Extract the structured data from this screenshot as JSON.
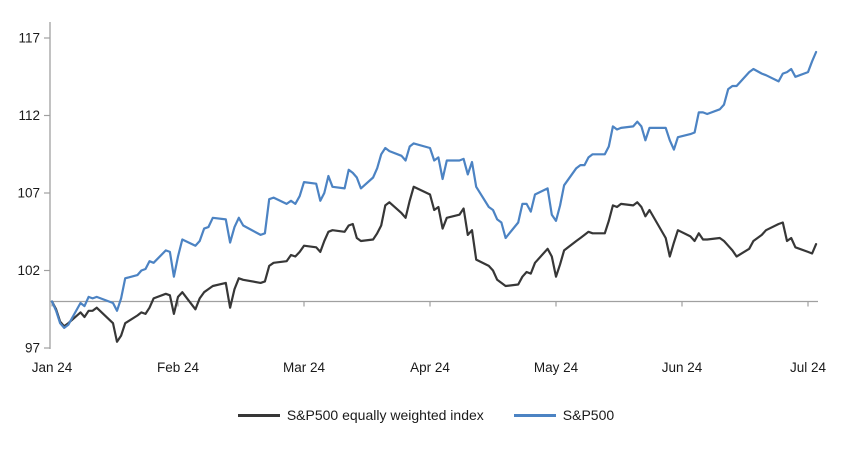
{
  "chart_data": {
    "type": "line",
    "title": "",
    "x_tick_labels": [
      "Jan 24",
      "Feb 24",
      "Mar 24",
      "Apr 24",
      "May 24",
      "Jun 24",
      "Jul 24"
    ],
    "y_tick_labels": [
      117,
      112,
      107,
      102,
      97
    ],
    "ylim": [
      97,
      118
    ],
    "baseline_value": 100,
    "grid": false,
    "legend_position": "bottom-center",
    "colors": {
      "axis": "#a0a0a0",
      "baseline": "#a0a0a0",
      "tick_text": "#1a1a1a",
      "equal_weight_line": "#373737",
      "sp500_line": "#4c83c3"
    },
    "dates": [
      "01-01",
      "01-02",
      "01-03",
      "01-04",
      "01-05",
      "01-08",
      "01-09",
      "01-10",
      "01-11",
      "01-12",
      "01-16",
      "01-17",
      "01-18",
      "01-19",
      "01-22",
      "01-23",
      "01-24",
      "01-25",
      "01-26",
      "01-29",
      "01-30",
      "01-31",
      "02-01",
      "02-02",
      "02-05",
      "02-06",
      "02-07",
      "02-08",
      "02-09",
      "02-12",
      "02-13",
      "02-14",
      "02-15",
      "02-16",
      "02-20",
      "02-21",
      "02-22",
      "02-23",
      "02-26",
      "02-27",
      "02-28",
      "02-29",
      "03-01",
      "03-04",
      "03-05",
      "03-06",
      "03-07",
      "03-08",
      "03-11",
      "03-12",
      "03-13",
      "03-14",
      "03-15",
      "03-18",
      "03-19",
      "03-20",
      "03-21",
      "03-22",
      "03-25",
      "03-26",
      "03-27",
      "03-28",
      "04-01",
      "04-02",
      "04-03",
      "04-04",
      "04-05",
      "04-08",
      "04-09",
      "04-10",
      "04-11",
      "04-12",
      "04-15",
      "04-16",
      "04-17",
      "04-18",
      "04-19",
      "04-22",
      "04-23",
      "04-24",
      "04-25",
      "04-26",
      "04-29",
      "04-30",
      "05-01",
      "05-02",
      "05-03",
      "05-06",
      "05-07",
      "05-08",
      "05-09",
      "05-10",
      "05-13",
      "05-14",
      "05-15",
      "05-16",
      "05-17",
      "05-20",
      "05-21",
      "05-22",
      "05-23",
      "05-24",
      "05-28",
      "05-29",
      "05-30",
      "05-31",
      "06-03",
      "06-04",
      "06-05",
      "06-06",
      "06-07",
      "06-10",
      "06-11",
      "06-12",
      "06-13",
      "06-14",
      "06-17",
      "06-18",
      "06-20",
      "06-21",
      "06-24",
      "06-25",
      "06-26",
      "06-27",
      "06-28",
      "07-01",
      "07-02",
      "07-03"
    ],
    "series": [
      {
        "name": "S&P500 equally weighted index",
        "color": "#373737",
        "values": [
          100.0,
          99.5,
          98.7,
          98.4,
          98.6,
          99.3,
          99.0,
          99.4,
          99.4,
          99.6,
          98.6,
          97.4,
          97.8,
          98.6,
          99.1,
          99.3,
          99.2,
          99.6,
          100.2,
          100.5,
          100.4,
          99.2,
          100.3,
          100.6,
          99.5,
          100.2,
          100.6,
          100.8,
          101.0,
          101.2,
          99.6,
          100.8,
          101.5,
          101.4,
          101.2,
          101.3,
          102.3,
          102.5,
          102.6,
          103.0,
          102.9,
          103.2,
          103.6,
          103.5,
          103.2,
          103.9,
          104.5,
          104.6,
          104.5,
          104.9,
          105.0,
          104.1,
          103.9,
          104.0,
          104.4,
          104.9,
          106.2,
          106.4,
          105.7,
          105.4,
          106.5,
          107.4,
          106.9,
          105.9,
          106.1,
          104.7,
          105.4,
          105.6,
          106.0,
          104.3,
          104.6,
          102.7,
          102.3,
          102.0,
          101.4,
          101.2,
          101.0,
          101.1,
          101.6,
          101.9,
          101.8,
          102.5,
          103.4,
          102.9,
          101.6,
          102.4,
          103.3,
          103.9,
          104.1,
          104.3,
          104.5,
          104.4,
          104.4,
          105.2,
          106.2,
          106.1,
          106.3,
          106.2,
          106.4,
          106.1,
          105.5,
          105.9,
          104.1,
          102.9,
          103.8,
          104.6,
          104.2,
          103.9,
          104.4,
          104.0,
          104.0,
          104.1,
          103.9,
          103.6,
          103.3,
          102.9,
          103.4,
          103.9,
          104.3,
          104.6,
          105.0,
          105.1,
          103.9,
          104.1,
          103.5,
          103.2,
          103.1,
          103.7
        ]
      },
      {
        "name": "S&P500",
        "color": "#4c83c3",
        "values": [
          100.0,
          99.4,
          98.6,
          98.3,
          98.5,
          99.9,
          99.7,
          100.3,
          100.2,
          100.3,
          99.9,
          99.4,
          100.2,
          101.5,
          101.7,
          102.0,
          102.1,
          102.6,
          102.5,
          103.3,
          103.2,
          101.6,
          102.9,
          104.0,
          103.6,
          103.9,
          104.7,
          104.8,
          105.4,
          105.3,
          103.8,
          104.8,
          105.4,
          104.9,
          104.3,
          104.4,
          106.6,
          106.7,
          106.3,
          106.5,
          106.3,
          106.8,
          107.7,
          107.6,
          106.5,
          107.0,
          108.1,
          107.4,
          107.3,
          108.5,
          108.3,
          108.0,
          107.3,
          108.0,
          108.6,
          109.5,
          109.9,
          109.7,
          109.4,
          109.1,
          110.0,
          110.2,
          109.9,
          109.1,
          109.3,
          107.9,
          109.1,
          109.1,
          109.2,
          108.2,
          109.0,
          107.4,
          106.1,
          105.9,
          105.3,
          105.1,
          104.1,
          105.1,
          106.3,
          106.3,
          105.8,
          106.9,
          107.3,
          105.6,
          105.2,
          106.2,
          107.5,
          108.6,
          108.8,
          108.8,
          109.3,
          109.5,
          109.5,
          110.0,
          111.3,
          111.1,
          111.2,
          111.3,
          111.6,
          111.3,
          110.4,
          111.2,
          111.2,
          110.4,
          109.8,
          110.6,
          110.8,
          110.9,
          112.2,
          112.2,
          112.1,
          112.4,
          112.7,
          113.7,
          113.9,
          113.9,
          114.8,
          115.0,
          114.7,
          114.6,
          114.2,
          114.7,
          114.8,
          115.0,
          114.5,
          114.8,
          115.5,
          116.1
        ]
      }
    ]
  }
}
